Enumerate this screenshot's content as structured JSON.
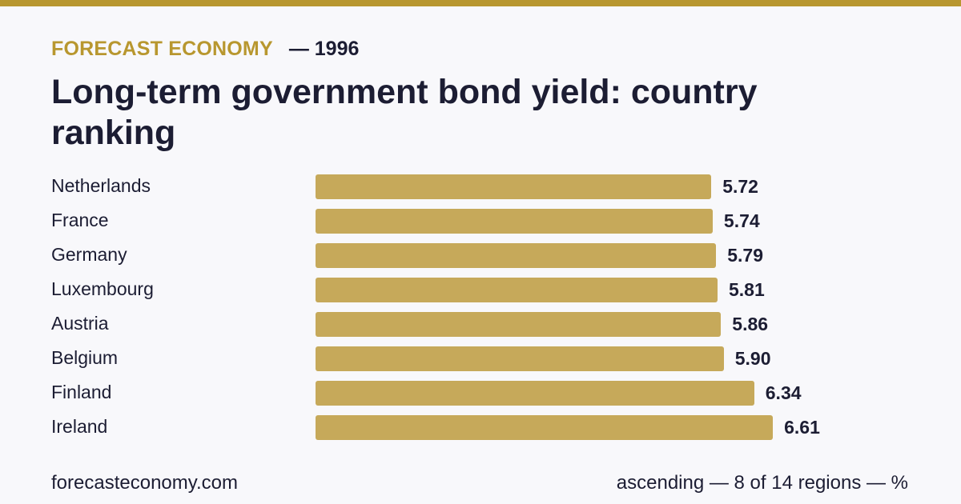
{
  "header": {
    "brand": "FORECAST ECONOMY",
    "year_label": "— 1996"
  },
  "chart_data": {
    "type": "bar",
    "orientation": "horizontal",
    "title": "Long-term government bond yield: country ranking",
    "categories": [
      "Netherlands",
      "France",
      "Germany",
      "Luxembourg",
      "Austria",
      "Belgium",
      "Finland",
      "Ireland"
    ],
    "values": [
      5.72,
      5.74,
      5.79,
      5.81,
      5.86,
      5.9,
      6.34,
      6.61
    ],
    "value_labels": [
      "5.72",
      "5.74",
      "5.79",
      "5.81",
      "5.86",
      "5.90",
      "6.34",
      "6.61"
    ],
    "grid": false,
    "legend": "none",
    "colors": {
      "bar": "#c6a95a",
      "accent": "#b8972f"
    }
  },
  "footer": {
    "site": "forecasteconomy.com",
    "note": "ascending — 8 of 14 regions — %"
  }
}
